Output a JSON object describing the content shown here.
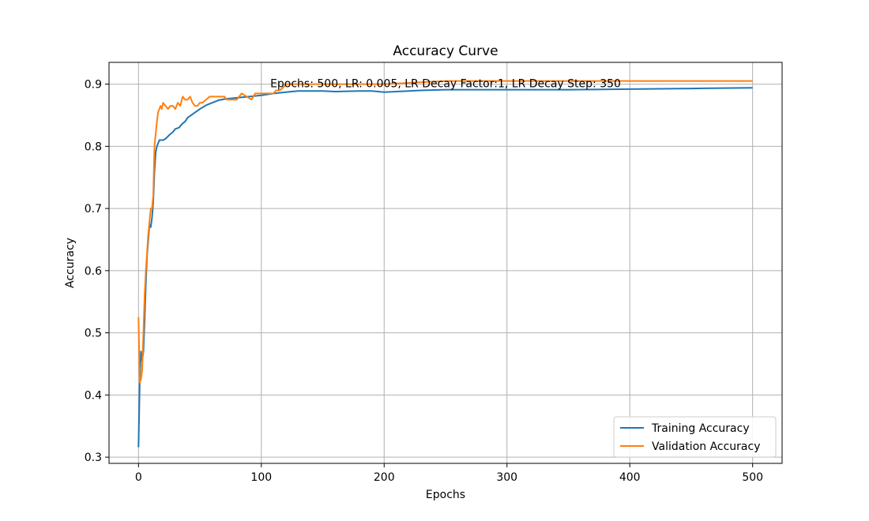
{
  "chart_data": {
    "type": "line",
    "title": "Accuracy Curve",
    "xlabel": "Epochs",
    "ylabel": "Accuracy",
    "xlim": [
      -24,
      524
    ],
    "ylim": [
      0.29,
      0.935
    ],
    "xticks": [
      0,
      100,
      200,
      300,
      400,
      500
    ],
    "yticks": [
      0.3,
      0.4,
      0.5,
      0.6,
      0.7,
      0.8,
      0.9
    ],
    "grid": true,
    "legend_position": "bottom-right",
    "annotation": {
      "text": "Epochs: 500, LR: 0.005, LR Decay Factor:1, LR Decay Step: 350",
      "x": 250,
      "y": 0.9
    },
    "series": [
      {
        "name": "Training Accuracy",
        "color": "#1f77b4",
        "points": [
          [
            0,
            0.316
          ],
          [
            1,
            0.42
          ],
          [
            2,
            0.47
          ],
          [
            3,
            0.455
          ],
          [
            4,
            0.47
          ],
          [
            5,
            0.52
          ],
          [
            6,
            0.58
          ],
          [
            7,
            0.625
          ],
          [
            8,
            0.65
          ],
          [
            9,
            0.675
          ],
          [
            10,
            0.67
          ],
          [
            11,
            0.685
          ],
          [
            12,
            0.71
          ],
          [
            13,
            0.76
          ],
          [
            14,
            0.79
          ],
          [
            15,
            0.8
          ],
          [
            16,
            0.805
          ],
          [
            17,
            0.81
          ],
          [
            20,
            0.81
          ],
          [
            22,
            0.812
          ],
          [
            25,
            0.818
          ],
          [
            28,
            0.823
          ],
          [
            30,
            0.828
          ],
          [
            33,
            0.83
          ],
          [
            35,
            0.835
          ],
          [
            38,
            0.84
          ],
          [
            40,
            0.846
          ],
          [
            45,
            0.853
          ],
          [
            50,
            0.86
          ],
          [
            55,
            0.866
          ],
          [
            60,
            0.87
          ],
          [
            65,
            0.874
          ],
          [
            70,
            0.876
          ],
          [
            80,
            0.878
          ],
          [
            90,
            0.88
          ],
          [
            100,
            0.882
          ],
          [
            110,
            0.885
          ],
          [
            120,
            0.887
          ],
          [
            130,
            0.889
          ],
          [
            140,
            0.889
          ],
          [
            150,
            0.889
          ],
          [
            160,
            0.888
          ],
          [
            180,
            0.889
          ],
          [
            190,
            0.889
          ],
          [
            200,
            0.887
          ],
          [
            210,
            0.888
          ],
          [
            230,
            0.89
          ],
          [
            250,
            0.891
          ],
          [
            270,
            0.891
          ],
          [
            300,
            0.891
          ],
          [
            350,
            0.891
          ],
          [
            400,
            0.892
          ],
          [
            450,
            0.893
          ],
          [
            500,
            0.894
          ]
        ]
      },
      {
        "name": "Validation Accuracy",
        "color": "#ff7f0e",
        "points": [
          [
            0,
            0.525
          ],
          [
            1,
            0.42
          ],
          [
            2,
            0.425
          ],
          [
            3,
            0.44
          ],
          [
            4,
            0.5
          ],
          [
            5,
            0.56
          ],
          [
            6,
            0.6
          ],
          [
            7,
            0.63
          ],
          [
            8,
            0.66
          ],
          [
            9,
            0.68
          ],
          [
            10,
            0.7
          ],
          [
            11,
            0.7
          ],
          [
            12,
            0.72
          ],
          [
            13,
            0.8
          ],
          [
            14,
            0.82
          ],
          [
            15,
            0.84
          ],
          [
            16,
            0.855
          ],
          [
            17,
            0.86
          ],
          [
            18,
            0.865
          ],
          [
            19,
            0.86
          ],
          [
            20,
            0.87
          ],
          [
            22,
            0.865
          ],
          [
            24,
            0.86
          ],
          [
            26,
            0.865
          ],
          [
            28,
            0.865
          ],
          [
            30,
            0.86
          ],
          [
            32,
            0.87
          ],
          [
            34,
            0.865
          ],
          [
            36,
            0.88
          ],
          [
            38,
            0.875
          ],
          [
            40,
            0.875
          ],
          [
            42,
            0.88
          ],
          [
            44,
            0.87
          ],
          [
            46,
            0.865
          ],
          [
            48,
            0.865
          ],
          [
            50,
            0.87
          ],
          [
            52,
            0.87
          ],
          [
            55,
            0.875
          ],
          [
            58,
            0.88
          ],
          [
            60,
            0.88
          ],
          [
            65,
            0.88
          ],
          [
            70,
            0.88
          ],
          [
            72,
            0.875
          ],
          [
            80,
            0.875
          ],
          [
            84,
            0.885
          ],
          [
            88,
            0.88
          ],
          [
            92,
            0.875
          ],
          [
            95,
            0.885
          ],
          [
            100,
            0.885
          ],
          [
            105,
            0.885
          ],
          [
            110,
            0.885
          ],
          [
            112,
            0.89
          ],
          [
            115,
            0.89
          ],
          [
            118,
            0.895
          ],
          [
            120,
            0.9
          ],
          [
            125,
            0.9
          ],
          [
            130,
            0.9
          ],
          [
            150,
            0.9
          ],
          [
            200,
            0.9
          ],
          [
            250,
            0.905
          ],
          [
            300,
            0.905
          ],
          [
            350,
            0.905
          ],
          [
            400,
            0.905
          ],
          [
            450,
            0.905
          ],
          [
            500,
            0.905
          ]
        ]
      }
    ]
  }
}
